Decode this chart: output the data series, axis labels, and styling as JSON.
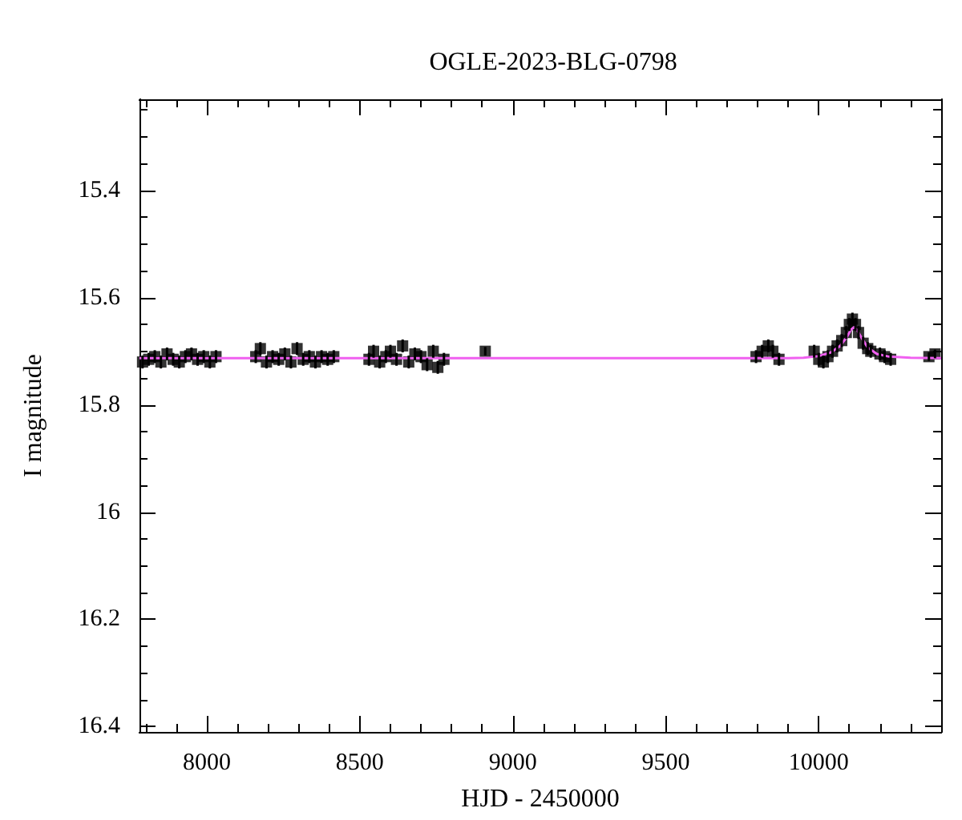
{
  "chart_data": {
    "type": "scatter",
    "title": "OGLE-2023-BLG-0798",
    "xlabel": "HJD - 2450000",
    "ylabel": "I magnitude",
    "xlim": [
      7780,
      10400
    ],
    "ylim": [
      16.41,
      15.23
    ],
    "xticks": [
      {
        "value": 7800,
        "label": null
      },
      {
        "value": 7900,
        "label": null
      },
      8000,
      {
        "value": 8100,
        "label": null
      },
      {
        "value": 8200,
        "label": null
      },
      {
        "value": 8300,
        "label": null
      },
      {
        "value": 8400,
        "label": null
      },
      8500,
      {
        "value": 8600,
        "label": null
      },
      {
        "value": 8700,
        "label": null
      },
      {
        "value": 8800,
        "label": null
      },
      {
        "value": 8900,
        "label": null
      },
      9000,
      {
        "value": 9100,
        "label": null
      },
      {
        "value": 9200,
        "label": null
      },
      {
        "value": 9300,
        "label": null
      },
      {
        "value": 9400,
        "label": null
      },
      9500,
      {
        "value": 9600,
        "label": null
      },
      {
        "value": 9700,
        "label": null
      },
      {
        "value": 9800,
        "label": null
      },
      {
        "value": 9900,
        "label": null
      },
      10000,
      {
        "value": 10100,
        "label": null
      },
      {
        "value": 10200,
        "label": null
      },
      {
        "value": 10300,
        "label": null
      }
    ],
    "yticks": [
      {
        "value": 15.25,
        "label": null
      },
      {
        "value": 15.3,
        "label": null
      },
      {
        "value": 15.35,
        "label": null
      },
      15.4,
      {
        "value": 15.45,
        "label": null
      },
      {
        "value": 15.5,
        "label": null
      },
      {
        "value": 15.55,
        "label": null
      },
      15.6,
      {
        "value": 15.65,
        "label": null
      },
      {
        "value": 15.7,
        "label": null
      },
      {
        "value": 15.75,
        "label": null
      },
      15.8,
      {
        "value": 15.85,
        "label": null
      },
      {
        "value": 15.9,
        "label": null
      },
      {
        "value": 15.95,
        "label": null
      },
      16,
      {
        "value": 16.05,
        "label": null
      },
      {
        "value": 16.1,
        "label": null
      },
      {
        "value": 16.15,
        "label": null
      },
      16.2,
      {
        "value": 16.25,
        "label": null
      },
      {
        "value": 16.3,
        "label": null
      },
      {
        "value": 16.35,
        "label": null
      },
      16.4
    ],
    "grid": false,
    "marker": "square",
    "series": [
      {
        "color": "#000000",
        "x": [
          7790,
          7810,
          7830,
          7850,
          7870,
          7890,
          7910,
          7930,
          7950,
          7970,
          7990,
          8010,
          8030,
          8160,
          8175,
          8195,
          8215,
          8235,
          8255,
          8275,
          8295,
          8315,
          8335,
          8355,
          8375,
          8395,
          8415,
          8530,
          8545,
          8565,
          8585,
          8600,
          8620,
          8640,
          8660,
          8680,
          8700,
          8720,
          8740,
          8755,
          8775,
          8910,
          9795,
          9815,
          9835,
          9850,
          9870,
          9985,
          10000,
          10015,
          10030,
          10045,
          10060,
          10075,
          10090,
          10100,
          10110,
          10120,
          10130,
          10145,
          10160,
          10170,
          10200,
          10215,
          10235,
          10360,
          10380
        ],
        "values": [
          15.72,
          15.715,
          15.71,
          15.72,
          15.705,
          15.715,
          15.72,
          15.71,
          15.705,
          15.715,
          15.71,
          15.72,
          15.71,
          15.71,
          15.695,
          15.72,
          15.71,
          15.715,
          15.705,
          15.72,
          15.695,
          15.715,
          15.71,
          15.72,
          15.71,
          15.715,
          15.71,
          15.715,
          15.7,
          15.72,
          15.71,
          15.7,
          15.715,
          15.69,
          15.72,
          15.705,
          15.71,
          15.725,
          15.7,
          15.73,
          15.715,
          15.7,
          15.71,
          15.7,
          15.69,
          15.7,
          15.715,
          15.7,
          15.715,
          15.72,
          15.71,
          15.7,
          15.69,
          15.68,
          15.665,
          15.65,
          15.64,
          15.65,
          15.665,
          15.685,
          15.695,
          15.7,
          15.705,
          15.71,
          15.715,
          15.71,
          15.705
        ],
        "errors": [
          0.012,
          0.012,
          0.012,
          0.012,
          0.012,
          0.012,
          0.012,
          0.012,
          0.012,
          0.012,
          0.012,
          0.012,
          0.012,
          0.012,
          0.012,
          0.012,
          0.012,
          0.012,
          0.012,
          0.012,
          0.012,
          0.012,
          0.012,
          0.012,
          0.012,
          0.012,
          0.012,
          0.012,
          0.012,
          0.012,
          0.012,
          0.012,
          0.012,
          0.012,
          0.012,
          0.012,
          0.012,
          0.012,
          0.012,
          0.012,
          0.012,
          0.008,
          0.012,
          0.012,
          0.012,
          0.012,
          0.012,
          0.012,
          0.012,
          0.012,
          0.012,
          0.012,
          0.012,
          0.012,
          0.012,
          0.012,
          0.012,
          0.012,
          0.012,
          0.012,
          0.012,
          0.012,
          0.012,
          0.012,
          0.012,
          0.008,
          0.008
        ]
      },
      {
        "type": "line",
        "color": "#f060f0",
        "marker": "none",
        "line_style": "solid",
        "x": [
          7780,
          9900,
          9950,
          10000,
          10040,
          10070,
          10090,
          10105,
          10115,
          10125,
          10140,
          10160,
          10190,
          10230,
          10300,
          10400
        ],
        "values": [
          15.713,
          15.713,
          15.712,
          15.709,
          15.702,
          15.69,
          15.675,
          15.66,
          15.655,
          15.66,
          15.675,
          15.693,
          15.705,
          15.71,
          15.712,
          15.713
        ]
      }
    ]
  }
}
